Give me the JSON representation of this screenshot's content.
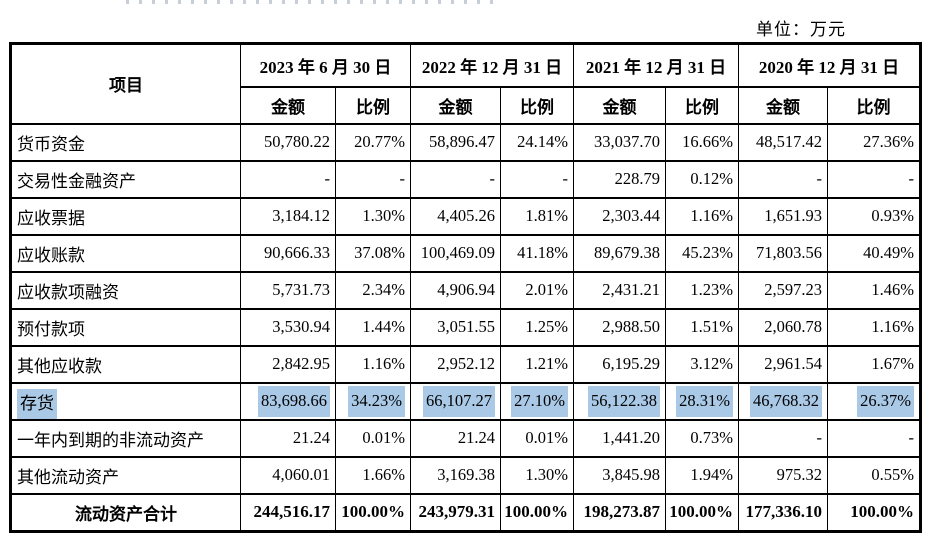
{
  "unit_label": "单位：万元",
  "table": {
    "item_header": "项目",
    "amount_header": "金额",
    "ratio_header": "比例",
    "highlight_color": "#a9c9e6",
    "columns": [
      {
        "date": "2023 年 6 月 30 日"
      },
      {
        "date": "2022 年 12 月 31 日"
      },
      {
        "date": "2021 年 12 月 31 日"
      },
      {
        "date": "2020 年 12 月 31 日"
      }
    ],
    "rows": [
      {
        "label": "货币资金",
        "values": [
          "50,780.22",
          "20.77%",
          "58,896.47",
          "24.14%",
          "33,037.70",
          "16.66%",
          "48,517.42",
          "27.36%"
        ]
      },
      {
        "label": "交易性金融资产",
        "values": [
          "-",
          "-",
          "-",
          "-",
          "228.79",
          "0.12%",
          "-",
          "-"
        ]
      },
      {
        "label": "应收票据",
        "values": [
          "3,184.12",
          "1.30%",
          "4,405.26",
          "1.81%",
          "2,303.44",
          "1.16%",
          "1,651.93",
          "0.93%"
        ]
      },
      {
        "label": "应收账款",
        "values": [
          "90,666.33",
          "37.08%",
          "100,469.09",
          "41.18%",
          "89,679.38",
          "45.23%",
          "71,803.56",
          "40.49%"
        ]
      },
      {
        "label": "应收款项融资",
        "values": [
          "5,731.73",
          "2.34%",
          "4,906.94",
          "2.01%",
          "2,431.21",
          "1.23%",
          "2,597.23",
          "1.46%"
        ]
      },
      {
        "label": "预付款项",
        "values": [
          "3,530.94",
          "1.44%",
          "3,051.55",
          "1.25%",
          "2,988.50",
          "1.51%",
          "2,060.78",
          "1.16%"
        ]
      },
      {
        "label": "其他应收款",
        "values": [
          "2,842.95",
          "1.16%",
          "2,952.12",
          "1.21%",
          "6,195.29",
          "3.12%",
          "2,961.54",
          "1.67%"
        ]
      },
      {
        "label": "存货",
        "highlighted": true,
        "values": [
          "83,698.66",
          "34.23%",
          "66,107.27",
          "27.10%",
          "56,122.38",
          "28.31%",
          "46,768.32",
          "26.37%"
        ]
      },
      {
        "label": "一年内到期的非流动资产",
        "values": [
          "21.24",
          "0.01%",
          "21.24",
          "0.01%",
          "1,441.20",
          "0.73%",
          "-",
          "-"
        ]
      },
      {
        "label": "其他流动资产",
        "values": [
          "4,060.01",
          "1.66%",
          "3,169.38",
          "1.30%",
          "3,845.98",
          "1.94%",
          "975.32",
          "0.55%"
        ]
      },
      {
        "label": "流动资产合计",
        "total": true,
        "values": [
          "244,516.17",
          "100.00%",
          "243,979.31",
          "100.00%",
          "198,273.87",
          "100.00%",
          "177,336.10",
          "100.00%"
        ]
      }
    ]
  }
}
